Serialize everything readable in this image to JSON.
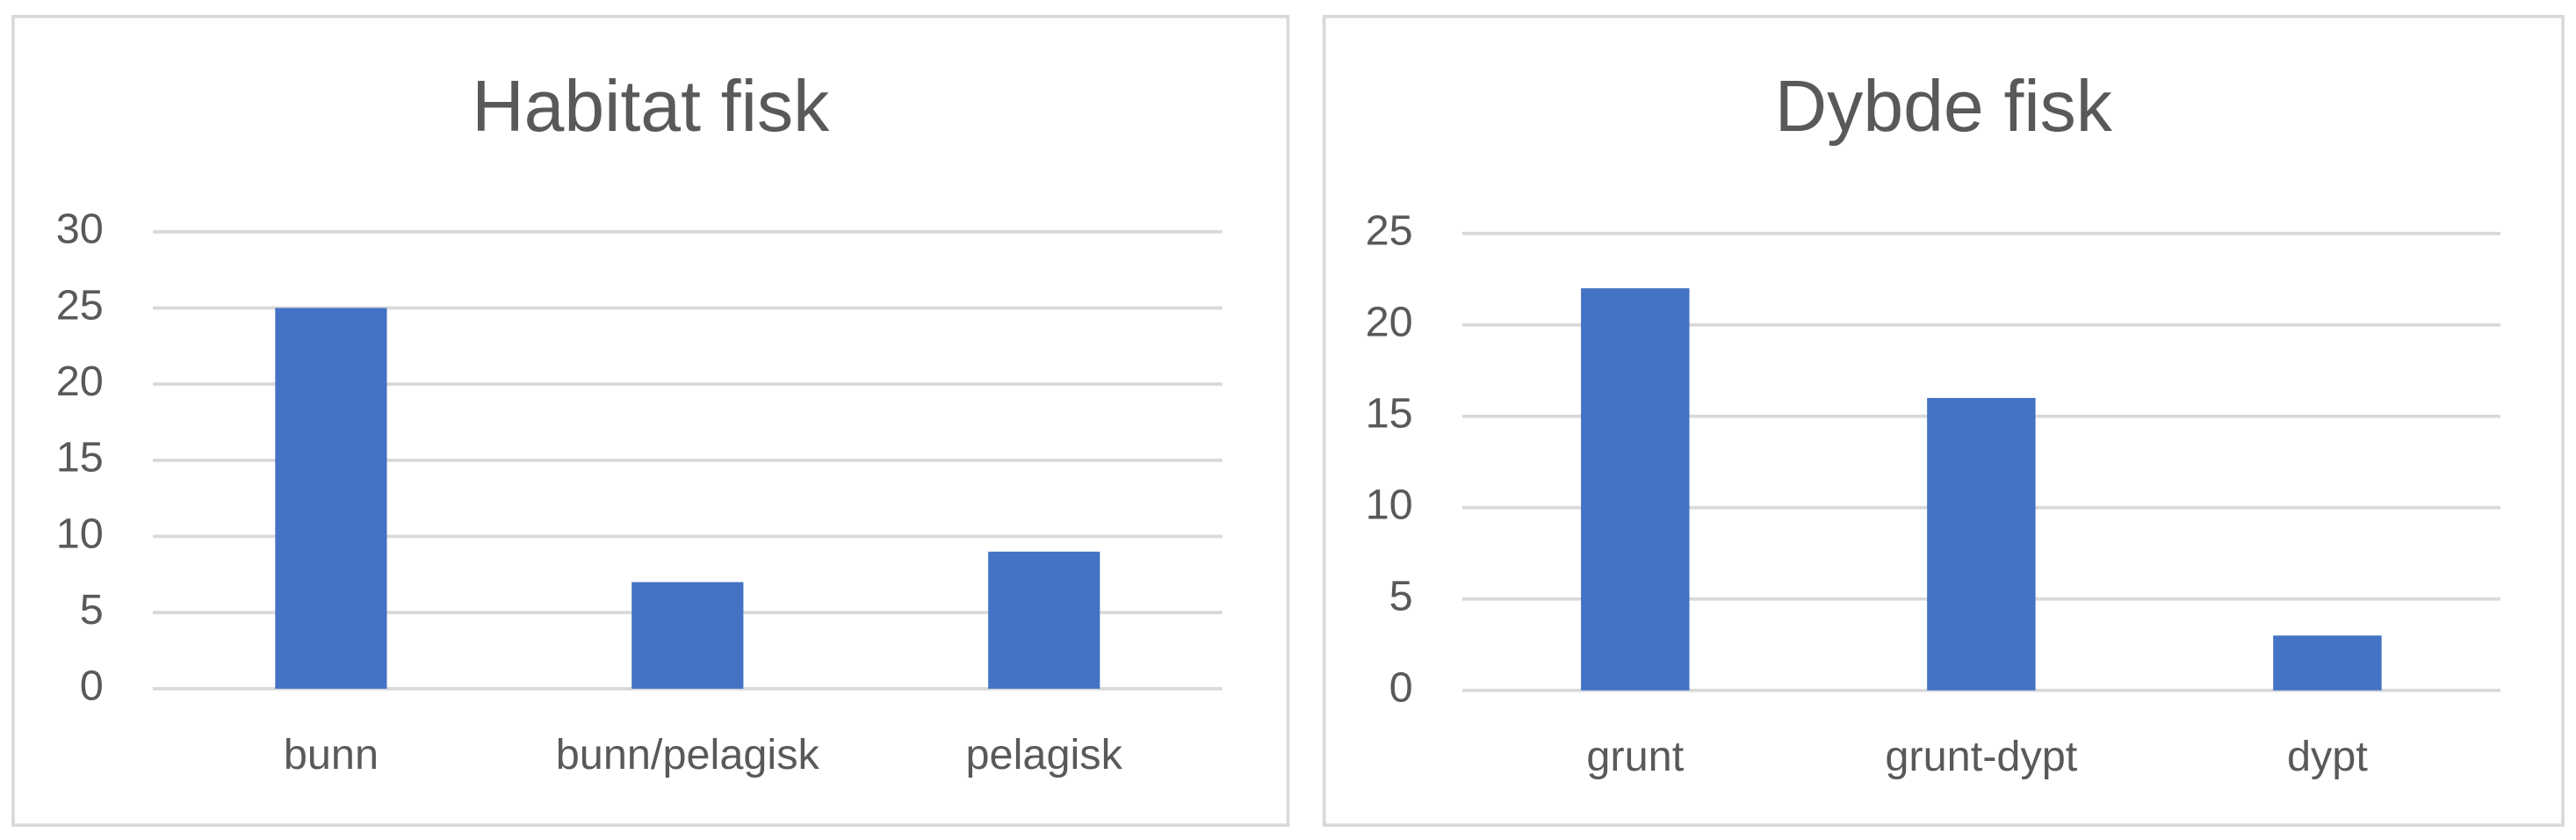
{
  "chart_data": [
    {
      "type": "bar",
      "title": "Habitat fisk",
      "categories": [
        "bunn",
        "bunn/pelagisk",
        "pelagisk"
      ],
      "values": [
        25,
        7,
        9
      ],
      "color": "#4472c4",
      "ylim": [
        0,
        30
      ],
      "yticks": [
        0,
        5,
        10,
        15,
        20,
        25,
        30
      ],
      "grid": true
    },
    {
      "type": "bar",
      "title": "Dybde fisk",
      "categories": [
        "grunt",
        "grunt-dypt",
        "dypt"
      ],
      "values": [
        22,
        16,
        3
      ],
      "color": "#4472c4",
      "ylim": [
        0,
        25
      ],
      "yticks": [
        0,
        5,
        10,
        15,
        20,
        25
      ],
      "grid": true
    }
  ]
}
